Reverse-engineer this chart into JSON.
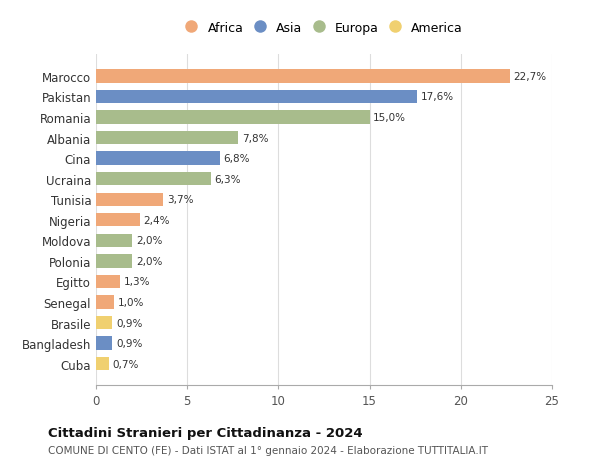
{
  "countries": [
    "Marocco",
    "Pakistan",
    "Romania",
    "Albania",
    "Cina",
    "Ucraina",
    "Tunisia",
    "Nigeria",
    "Moldova",
    "Polonia",
    "Egitto",
    "Senegal",
    "Brasile",
    "Bangladesh",
    "Cuba"
  ],
  "values": [
    22.7,
    17.6,
    15.0,
    7.8,
    6.8,
    6.3,
    3.7,
    2.4,
    2.0,
    2.0,
    1.3,
    1.0,
    0.9,
    0.9,
    0.7
  ],
  "labels": [
    "22,7%",
    "17,6%",
    "15,0%",
    "7,8%",
    "6,8%",
    "6,3%",
    "3,7%",
    "2,4%",
    "2,0%",
    "2,0%",
    "1,3%",
    "1,0%",
    "0,9%",
    "0,9%",
    "0,7%"
  ],
  "continents": [
    "Africa",
    "Asia",
    "Europa",
    "Europa",
    "Asia",
    "Europa",
    "Africa",
    "Africa",
    "Europa",
    "Europa",
    "Africa",
    "Africa",
    "America",
    "Asia",
    "America"
  ],
  "colors": {
    "Africa": "#F0A878",
    "Asia": "#6B8EC4",
    "Europa": "#A8BC8C",
    "America": "#F0D070"
  },
  "legend_order": [
    "Africa",
    "Asia",
    "Europa",
    "America"
  ],
  "title": "Cittadini Stranieri per Cittadinanza - 2024",
  "subtitle": "COMUNE DI CENTO (FE) - Dati ISTAT al 1° gennaio 2024 - Elaborazione TUTTITALIA.IT",
  "xlim": [
    0,
    25
  ],
  "xticks": [
    0,
    5,
    10,
    15,
    20,
    25
  ],
  "background_color": "#ffffff",
  "grid_color": "#dddddd",
  "bar_height": 0.65
}
